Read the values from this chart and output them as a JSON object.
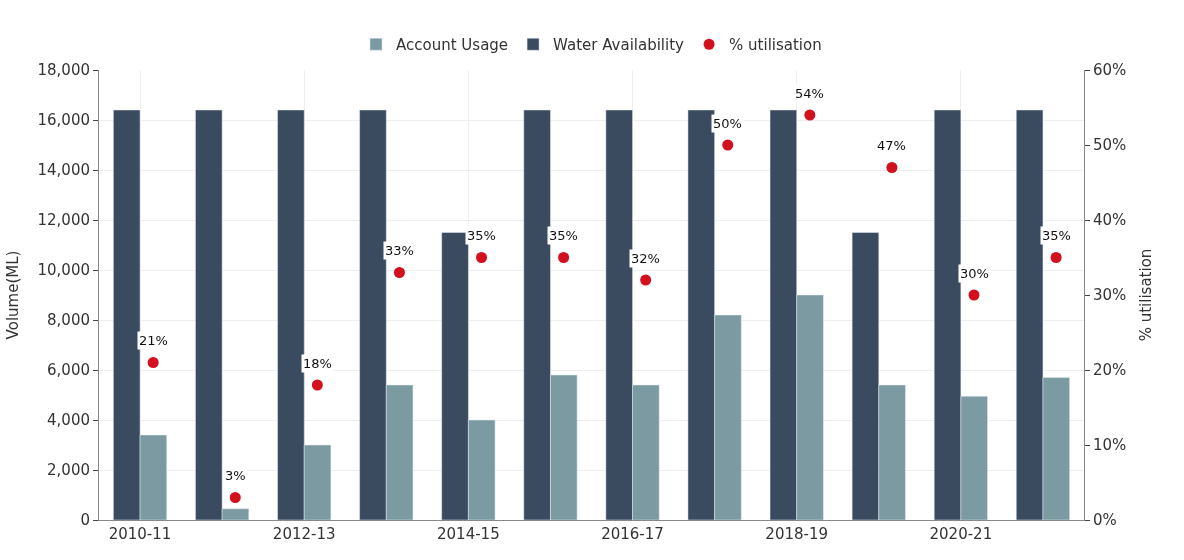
{
  "chart_data": {
    "type": "bar",
    "ylabel": "Volume(ML)",
    "y2label": "% utilisation",
    "categories": [
      "2010-11",
      null,
      "2012-13",
      null,
      "2014-15",
      null,
      "2016-17",
      null,
      "2018-19",
      null,
      "2020-21",
      null
    ],
    "series": [
      {
        "name": "Account Usage",
        "color": "#7b9aa2",
        "values": [
          3400,
          450,
          3000,
          5400,
          4000,
          5800,
          5400,
          8200,
          9000,
          5400,
          4950,
          5700
        ]
      },
      {
        "name": "Water Availability",
        "color": "#3a4a5f",
        "values": [
          16400,
          16400,
          16400,
          16400,
          11500,
          16400,
          16400,
          16400,
          16400,
          11500,
          16400,
          16400
        ]
      },
      {
        "name": "% utilisation",
        "type": "scatter",
        "axis": "y2",
        "color": "#d2101e",
        "marker": "circle",
        "data_labels": true,
        "value_labels": [
          "21%",
          "3%",
          "18%",
          "33%",
          "35%",
          "35%",
          "32%",
          "50%",
          "54%",
          "47%",
          "30%",
          "35%"
        ],
        "values": [
          21,
          3,
          18,
          33,
          35,
          35,
          32,
          50,
          54,
          47,
          30,
          35
        ]
      }
    ],
    "ylim": [
      0,
      18000
    ],
    "yticks": [
      {
        "value": 0,
        "label": "0"
      },
      {
        "value": 2000,
        "label": "2,000"
      },
      {
        "value": 4000,
        "label": "4,000"
      },
      {
        "value": 6000,
        "label": "6,000"
      },
      {
        "value": 8000,
        "label": "8,000"
      },
      {
        "value": 10000,
        "label": "10,000"
      },
      {
        "value": 12000,
        "label": "12,000"
      },
      {
        "value": 14000,
        "label": "14,000"
      },
      {
        "value": 16000,
        "label": "16,000"
      },
      {
        "value": 18000,
        "label": "18,000"
      }
    ],
    "y2lim": [
      0,
      60
    ],
    "y2ticks": [
      {
        "value": 0,
        "label": "0%"
      },
      {
        "value": 10,
        "label": "10%"
      },
      {
        "value": 20,
        "label": "20%"
      },
      {
        "value": 30,
        "label": "30%"
      },
      {
        "value": 40,
        "label": "40%"
      },
      {
        "value": 50,
        "label": "50%"
      },
      {
        "value": 60,
        "label": "60%"
      }
    ],
    "grid": true,
    "legend": "top"
  }
}
